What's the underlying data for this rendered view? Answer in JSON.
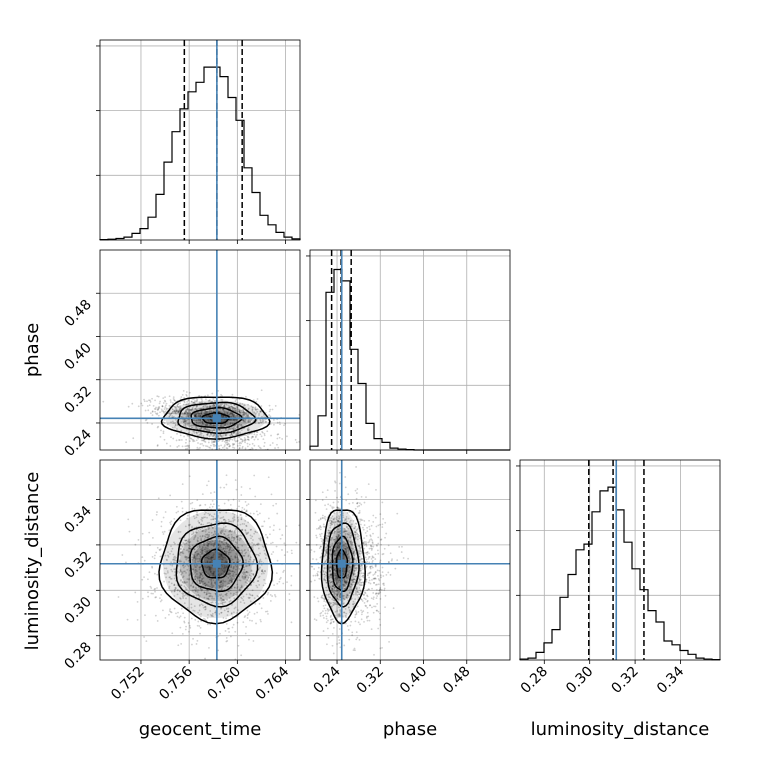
{
  "chart_data": {
    "type": "corner",
    "parameters": [
      "geocent_time",
      "phase",
      "luminosity_distance"
    ],
    "axis_titles": {
      "x": [
        "geocent_time",
        "phase",
        "luminosity_distance"
      ],
      "y_phase": "phase",
      "y_luminosity_distance": "luminosity_distance"
    },
    "ranges": {
      "geocent_time": [
        0.7486,
        0.7652
      ],
      "phase": [
        0.19,
        0.56
      ],
      "luminosity_distance": [
        0.2693,
        0.3574
      ]
    },
    "ticks": {
      "geocent_time": [
        "0.752",
        "0.756",
        "0.760",
        "0.764"
      ],
      "phase": [
        "0.24",
        "0.32",
        "0.40",
        "0.48"
      ],
      "luminosity_distance": [
        "0.28",
        "0.30",
        "0.32",
        "0.34"
      ]
    },
    "tick_values": {
      "geocent_time": [
        0.752,
        0.756,
        0.76,
        0.764
      ],
      "phase": [
        0.24,
        0.32,
        0.4,
        0.48
      ],
      "luminosity_distance": [
        0.28,
        0.3,
        0.32,
        0.34
      ]
    },
    "truths": {
      "geocent_time": 0.7583,
      "phase": 0.2487,
      "luminosity_distance": 0.3117
    },
    "quantiles": {
      "geocent_time": [
        0.7556,
        0.7583,
        0.7604
      ],
      "phase": [
        0.23,
        0.2475,
        0.2662
      ],
      "luminosity_distance": [
        0.2996,
        0.3103,
        0.3239
      ]
    },
    "histograms": {
      "geocent_time": [
        0.002,
        0.004,
        0.008,
        0.015,
        0.035,
        0.06,
        0.12,
        0.24,
        0.41,
        0.57,
        0.69,
        0.78,
        0.83,
        0.91,
        0.91,
        0.86,
        0.75,
        0.63,
        0.38,
        0.25,
        0.13,
        0.08,
        0.04,
        0.015,
        0.006
      ],
      "phase": [
        0.02,
        0.18,
        0.83,
        0.95,
        0.89,
        0.53,
        0.35,
        0.14,
        0.06,
        0.04,
        0.01,
        0.005,
        0.002,
        0,
        0,
        0,
        0,
        0,
        0,
        0,
        0,
        0,
        0,
        0,
        0
      ],
      "luminosity_distance": [
        0.005,
        0.01,
        0.04,
        0.09,
        0.16,
        0.33,
        0.45,
        0.58,
        0.61,
        0.78,
        0.89,
        0.91,
        0.79,
        0.62,
        0.48,
        0.37,
        0.26,
        0.2,
        0.1,
        0.08,
        0.05,
        0.03,
        0.01,
        0.005,
        0.002
      ]
    },
    "samples_2d": {
      "geocent_time_phase": {
        "mean": [
          0.7582,
          0.248
        ],
        "sd": [
          0.0022,
          0.018
        ],
        "corr": -0.3
      },
      "geocent_time_luminosity_distance": {
        "mean": [
          0.7582,
          0.3115
        ],
        "sd": [
          0.0023,
          0.0125
        ],
        "corr": 0.05
      },
      "phase_luminosity_distance": {
        "mean": [
          0.248,
          0.3115
        ],
        "sd": [
          0.018,
          0.0125
        ],
        "corr": -0.05
      }
    },
    "grid": true,
    "colors": {
      "truth": "#4682b4",
      "hist": "#000000",
      "contour": "#000000",
      "grid": "#b0b0b0"
    }
  }
}
